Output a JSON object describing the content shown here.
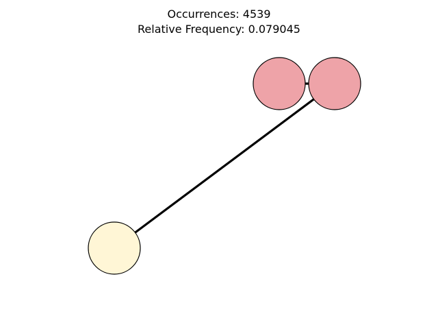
{
  "title": {
    "line1": "Occurrences: 4539",
    "line2": "Relative Frequency: 0.079045"
  },
  "graph": {
    "nodes": [
      {
        "id": "n1",
        "color": "#eea3a8"
      },
      {
        "id": "n2",
        "color": "#eea3a8"
      },
      {
        "id": "n3",
        "color": "#fff6d6"
      }
    ],
    "edges": [
      {
        "source": "n1",
        "target": "n2"
      },
      {
        "source": "n2",
        "target": "n3"
      }
    ],
    "edge_color": "#000000",
    "node_border_color": "#000000"
  }
}
